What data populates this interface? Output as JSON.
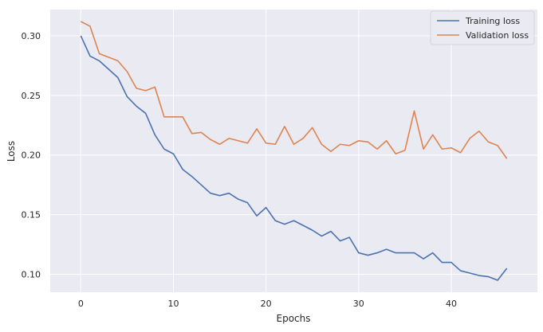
{
  "chart_data": {
    "type": "line",
    "title": "",
    "xlabel": "Epochs",
    "ylabel": "Loss",
    "xlim": [
      -3.3,
      49.3
    ],
    "ylim": [
      0.085,
      0.322
    ],
    "xticks": [
      0,
      10,
      20,
      30,
      40
    ],
    "xtick_labels": [
      "0",
      "10",
      "20",
      "30",
      "40"
    ],
    "yticks": [
      0.1,
      0.15,
      0.2,
      0.25,
      0.3
    ],
    "ytick_labels": [
      "0.10",
      "0.15",
      "0.20",
      "0.25",
      "0.30"
    ],
    "grid": true,
    "legend_position": "top-right",
    "background": "#eaeaf2",
    "x": [
      0,
      1,
      2,
      3,
      4,
      5,
      6,
      7,
      8,
      9,
      10,
      11,
      12,
      13,
      14,
      15,
      16,
      17,
      18,
      19,
      20,
      21,
      22,
      23,
      24,
      25,
      26,
      27,
      28,
      29,
      30,
      31,
      32,
      33,
      34,
      35,
      36,
      37,
      38,
      39,
      40,
      41,
      42,
      43,
      44,
      45,
      46
    ],
    "series": [
      {
        "name": "Training loss",
        "color": "#4c72b0",
        "values": [
          0.3,
          0.283,
          0.279,
          0.272,
          0.265,
          0.249,
          0.241,
          0.235,
          0.217,
          0.205,
          0.201,
          0.188,
          0.182,
          0.175,
          0.168,
          0.166,
          0.168,
          0.163,
          0.16,
          0.149,
          0.156,
          0.145,
          0.142,
          0.145,
          0.141,
          0.137,
          0.132,
          0.136,
          0.128,
          0.131,
          0.118,
          0.116,
          0.118,
          0.121,
          0.118,
          0.118,
          0.118,
          0.113,
          0.118,
          0.11,
          0.11,
          0.103,
          0.101,
          0.099,
          0.098,
          0.095,
          0.105
        ]
      },
      {
        "name": "Validation loss",
        "color": "#dd8452",
        "values": [
          0.312,
          0.308,
          0.285,
          0.282,
          0.279,
          0.27,
          0.256,
          0.254,
          0.257,
          0.232,
          0.232,
          0.232,
          0.218,
          0.219,
          0.213,
          0.209,
          0.214,
          0.212,
          0.21,
          0.222,
          0.21,
          0.209,
          0.224,
          0.209,
          0.214,
          0.223,
          0.209,
          0.203,
          0.209,
          0.208,
          0.212,
          0.211,
          0.205,
          0.212,
          0.201,
          0.204,
          0.237,
          0.205,
          0.217,
          0.205,
          0.206,
          0.202,
          0.214,
          0.22,
          0.211,
          0.208,
          0.197
        ]
      }
    ]
  }
}
